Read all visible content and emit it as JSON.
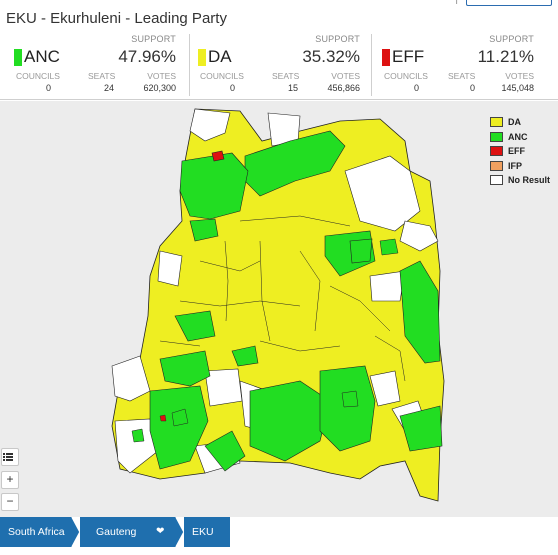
{
  "header": {
    "partial_text": "· · · |",
    "title": "EKU - Ekurhuleni - Leading Party"
  },
  "summary": {
    "labels": {
      "support": "SUPPORT",
      "councils": "COUNCILS",
      "seats": "SEATS",
      "votes": "VOTES"
    },
    "parties": [
      {
        "name": "ANC",
        "color": "#22dd22",
        "support": "47.96%",
        "councils": "0",
        "seats": "24",
        "votes": "620,300"
      },
      {
        "name": "DA",
        "color": "#eeee22",
        "support": "35.32%",
        "councils": "0",
        "seats": "15",
        "votes": "456,866"
      },
      {
        "name": "EFF",
        "color": "#dd1111",
        "support": "11.21%",
        "councils": "0",
        "seats": "0",
        "votes": "145,048"
      }
    ]
  },
  "legend": {
    "items": [
      {
        "label": "DA",
        "color": "#eeee22"
      },
      {
        "label": "ANC",
        "color": "#22dd22"
      },
      {
        "label": "EFF",
        "color": "#dd1111"
      },
      {
        "label": "IFP",
        "color": "#f0a060"
      },
      {
        "label": "No Result",
        "color": "#ffffff"
      }
    ]
  },
  "map_colors": {
    "DA": "#eeee22",
    "ANC": "#22dd22",
    "EFF": "#dd1111",
    "NoResult": "#ffffff",
    "border": "#222222",
    "background": "#ececec"
  },
  "controls": {
    "layers_icon": "list-icon",
    "zoom_in": "+",
    "zoom_out": "−"
  },
  "breadcrumb": {
    "items": [
      "South Africa",
      "Gauteng",
      "EKU"
    ],
    "dropdown_icon": "heart-chevron-icon",
    "dropdown_glyph": "❤"
  }
}
